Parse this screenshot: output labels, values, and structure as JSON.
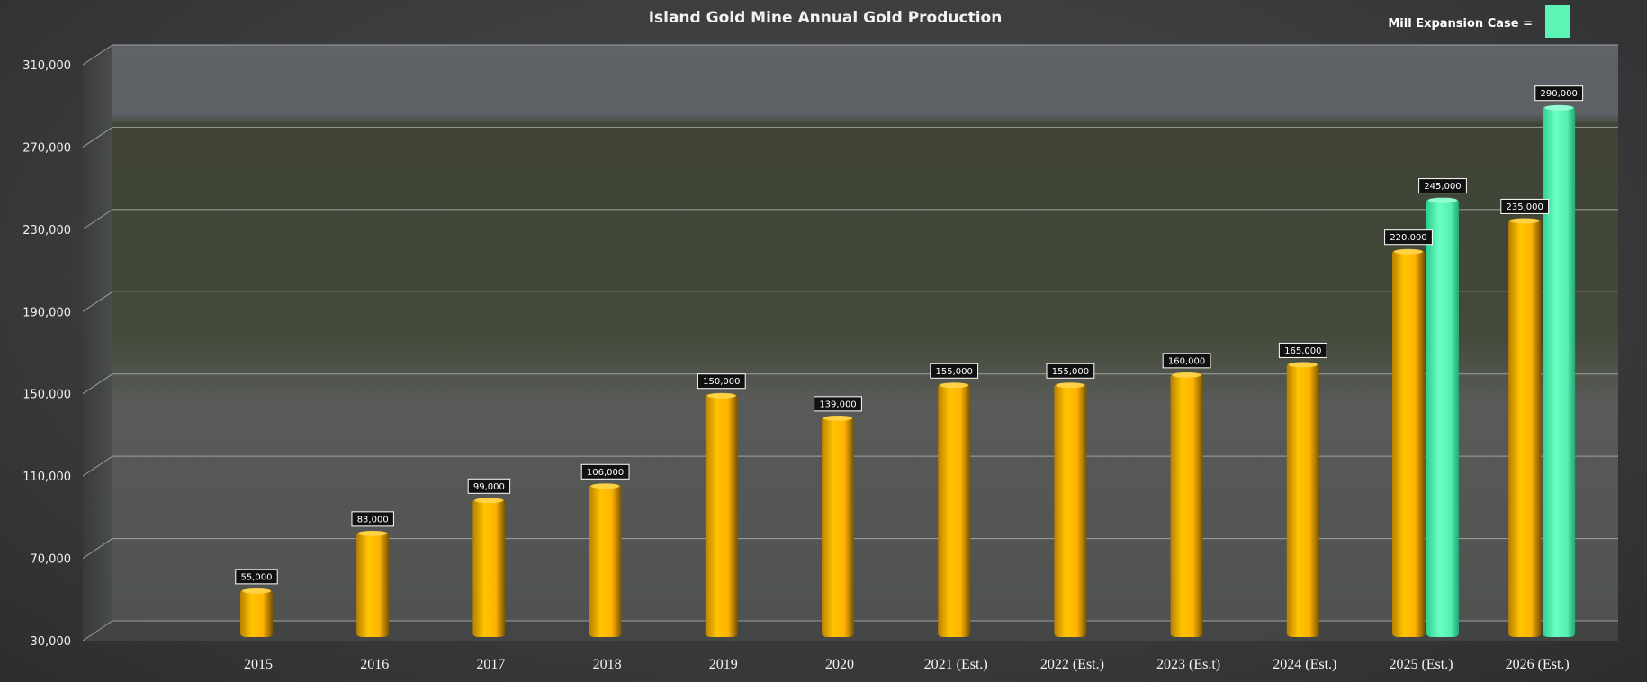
{
  "chart_data": {
    "type": "bar",
    "title": "Island Gold Mine Annual Gold Production",
    "legend": {
      "label": "Mill Expansion Case =",
      "color": "#5cf5b6",
      "placement": "top-right"
    },
    "xlabel": "",
    "ylabel": "",
    "ylim": [
      30000,
      310000
    ],
    "yticks": [
      "30,000",
      "70,000",
      "110,000",
      "150,000",
      "190,000",
      "230,000",
      "270,000",
      "310,000"
    ],
    "ytick_values": [
      30000,
      70000,
      110000,
      150000,
      190000,
      230000,
      270000,
      310000
    ],
    "grid": true,
    "categories": [
      "2015",
      "2016",
      "2017",
      "2018",
      "2019",
      "2020",
      "2021 (Est.)",
      "2022 (Est.)",
      "2023 (Es.t)",
      "2024 (Est.)",
      "2025 (Est.)",
      "2026 (Est.)"
    ],
    "series": [
      {
        "color": "#ffbf00",
        "values": [
          55000,
          83000,
          99000,
          106000,
          150000,
          139000,
          155000,
          155000,
          160000,
          165000,
          220000,
          235000
        ],
        "labels": [
          "55,000",
          "83,000",
          "99,000",
          "106,000",
          "150,000",
          "139,000",
          "155,000",
          "155,000",
          "160,000",
          "165,000",
          "220,000",
          "235,000"
        ]
      },
      {
        "name": "Mill Expansion Case",
        "color": "#5cf5b6",
        "values": [
          null,
          null,
          null,
          null,
          null,
          null,
          null,
          null,
          null,
          null,
          245000,
          290000
        ],
        "labels": [
          null,
          null,
          null,
          null,
          null,
          null,
          null,
          null,
          null,
          null,
          "245,000",
          "290,000"
        ]
      }
    ]
  }
}
